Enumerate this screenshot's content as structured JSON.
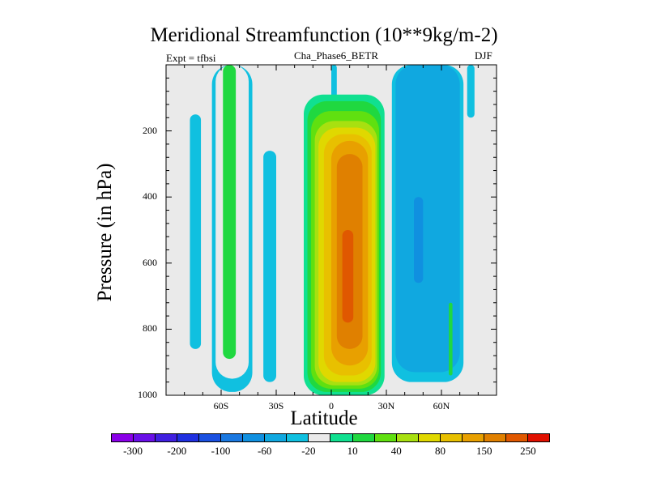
{
  "chart_data": {
    "type": "heatmap",
    "title": "Meridional Streamfunction (10**9kg/m-2)",
    "left_label": "Expt = tfbsi",
    "center_label": "Cha_Phase6_BETR",
    "right_label": "DJF",
    "xlabel": "Latitude",
    "ylabel": "Pressure (in hPa)",
    "xlim": [
      -90,
      90
    ],
    "ylim": [
      1000,
      0
    ],
    "x_ticks": [
      {
        "value": -60,
        "label": "60S"
      },
      {
        "value": -30,
        "label": "30S"
      },
      {
        "value": 0,
        "label": "0"
      },
      {
        "value": 30,
        "label": "30N"
      },
      {
        "value": 60,
        "label": "60N"
      }
    ],
    "y_ticks": [
      {
        "value": 200,
        "label": "200"
      },
      {
        "value": 400,
        "label": "400"
      },
      {
        "value": 600,
        "label": "600"
      },
      {
        "value": 800,
        "label": "800"
      },
      {
        "value": 1000,
        "label": "1000"
      }
    ],
    "levels": [
      -300,
      -250,
      -200,
      -150,
      -100,
      -80,
      -60,
      -40,
      -20,
      -10,
      10,
      20,
      40,
      60,
      80,
      100,
      150,
      200,
      250,
      300
    ],
    "colorbar_labels": [
      "-300",
      "-200",
      "-100",
      "-60",
      "-20",
      "10",
      "40",
      "80",
      "150",
      "250"
    ],
    "colors": [
      "#8a00e8",
      "#6a10e8",
      "#4020e0",
      "#2030e0",
      "#1a50e0",
      "#1a78e0",
      "#1090e0",
      "#10a8e0",
      "#10c0e0",
      "#eaeaea",
      "#10e090",
      "#20d840",
      "#60e010",
      "#a8e010",
      "#e0d800",
      "#e8c000",
      "#e8a000",
      "#e08000",
      "#e05800",
      "#e01000"
    ],
    "background_color": "#eaeaea",
    "cells": [
      {
        "name": "sh-high-cyan-cell",
        "lat": [
          -77,
          -71
        ],
        "p": [
          150,
          860
        ],
        "value": -20
      },
      {
        "name": "sh-midlat-cyan-cell",
        "lat": [
          -65,
          -43
        ],
        "p": [
          0,
          990
        ],
        "value": -20
      },
      {
        "name": "sh-midlat-teal-cell",
        "lat": [
          -63,
          -45
        ],
        "p": [
          0,
          950
        ],
        "value": -10
      },
      {
        "name": "sh-midlat-green-core",
        "lat": [
          -59,
          -52
        ],
        "p": [
          0,
          890
        ],
        "value": 20
      },
      {
        "name": "sh-subtropical-cyan-cell",
        "lat": [
          -37,
          -30
        ],
        "p": [
          260,
          960
        ],
        "value": -20
      },
      {
        "name": "equatorial-cyan-plume",
        "lat": [
          0,
          3
        ],
        "p": [
          0,
          110
        ],
        "value": -20
      },
      {
        "name": "hadley-teal-outer",
        "lat": [
          -15,
          29
        ],
        "p": [
          90,
          1000
        ],
        "value": 10
      },
      {
        "name": "hadley-green",
        "lat": [
          -13,
          27
        ],
        "p": [
          110,
          990
        ],
        "value": 20
      },
      {
        "name": "hadley-lightgreen",
        "lat": [
          -11,
          26
        ],
        "p": [
          140,
          980
        ],
        "value": 40
      },
      {
        "name": "hadley-yellowgreen",
        "lat": [
          -9,
          25
        ],
        "p": [
          170,
          970
        ],
        "value": 60
      },
      {
        "name": "hadley-yellow",
        "lat": [
          -7,
          24
        ],
        "p": [
          190,
          960
        ],
        "value": 80
      },
      {
        "name": "hadley-gold",
        "lat": [
          -4,
          22
        ],
        "p": [
          210,
          940
        ],
        "value": 100
      },
      {
        "name": "hadley-amber",
        "lat": [
          0,
          20
        ],
        "p": [
          230,
          910
        ],
        "value": 150
      },
      {
        "name": "hadley-orange-core",
        "lat": [
          3,
          17
        ],
        "p": [
          270,
          860
        ],
        "value": 200
      },
      {
        "name": "hadley-red-core",
        "lat": [
          6,
          12
        ],
        "p": [
          500,
          780
        ],
        "value": 250
      },
      {
        "name": "ferrel-cyan-outer",
        "lat": [
          33,
          72
        ],
        "p": [
          0,
          960
        ],
        "value": -20
      },
      {
        "name": "ferrel-blue-cell",
        "lat": [
          35,
          70
        ],
        "p": [
          0,
          930
        ],
        "value": -40
      },
      {
        "name": "ferrel-deep-blue-core",
        "lat": [
          45,
          50
        ],
        "p": [
          400,
          660
        ],
        "value": -60
      },
      {
        "name": "nh-high-cyan-cell",
        "lat": [
          74,
          78
        ],
        "p": [
          0,
          160
        ],
        "value": -20
      },
      {
        "name": "nh-polar-green-cell",
        "lat": [
          64,
          66
        ],
        "p": [
          720,
          940
        ],
        "value": 20
      }
    ]
  }
}
